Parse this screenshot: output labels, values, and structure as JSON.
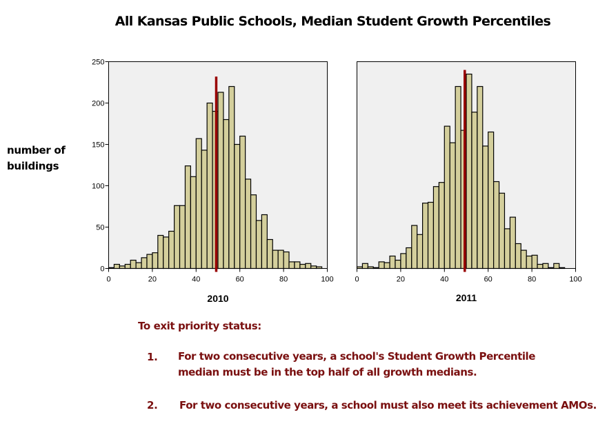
{
  "title": "All Kansas Public Schools, Median Student Growth Percentiles",
  "y_axis_label": [
    "number of",
    "buildings"
  ],
  "colors": {
    "bar_fill": "#d4cf9c",
    "bar_stroke": "#000000",
    "plot_bg": "#f0f0f0",
    "median_line": "#990000",
    "note_text": "#7a1010"
  },
  "chart_data": [
    {
      "type": "bar",
      "title": "2010",
      "xlabel": "2010",
      "ylabel": "number of buildings",
      "bin_width": 2.5,
      "bin_starts": [
        0,
        2.5,
        5,
        7.5,
        10,
        12.5,
        15,
        17.5,
        20,
        22.5,
        25,
        27.5,
        30,
        32.5,
        35,
        37.5,
        40,
        42.5,
        45,
        47.5,
        50,
        52.5,
        55,
        57.5,
        60,
        62.5,
        65,
        67.5,
        70,
        72.5,
        75,
        77.5,
        80,
        82.5,
        85,
        87.5,
        90,
        92.5,
        95
      ],
      "values": [
        1,
        5,
        3,
        5,
        10,
        7,
        13,
        17,
        19,
        40,
        38,
        45,
        76,
        76,
        124,
        111,
        157,
        143,
        200,
        190,
        213,
        180,
        220,
        150,
        160,
        108,
        89,
        58,
        65,
        35,
        22,
        22,
        20,
        8,
        8,
        5,
        6,
        3,
        2
      ],
      "median": 49.2,
      "x_ticks": [
        "0",
        "20",
        "40",
        "60",
        "80",
        "100"
      ],
      "y_ticks": [
        "0",
        "50",
        "100",
        "150",
        "200",
        "250"
      ],
      "xlim": [
        0,
        100
      ],
      "ylim": [
        0,
        250
      ],
      "grid": false
    },
    {
      "type": "bar",
      "title": "2011",
      "xlabel": "2011",
      "ylabel": "",
      "bin_width": 2.5,
      "bin_starts": [
        0,
        2.5,
        5,
        7.5,
        10,
        12.5,
        15,
        17.5,
        20,
        22.5,
        25,
        27.5,
        30,
        32.5,
        35,
        37.5,
        40,
        42.5,
        45,
        47.5,
        50,
        52.5,
        55,
        57.5,
        60,
        62.5,
        65,
        67.5,
        70,
        72.5,
        75,
        77.5,
        80,
        82.5,
        85,
        87.5,
        90,
        92.5
      ],
      "values": [
        2,
        6,
        2,
        1,
        8,
        7,
        15,
        10,
        18,
        25,
        52,
        41,
        79,
        80,
        99,
        104,
        172,
        152,
        220,
        167,
        235,
        189,
        220,
        148,
        165,
        105,
        91,
        48,
        62,
        30,
        22,
        15,
        16,
        5,
        6,
        1,
        6,
        1
      ],
      "median": 49.3,
      "x_ticks": [
        "0",
        "20",
        "40",
        "60",
        "80",
        "100"
      ],
      "y_ticks": [],
      "xlim": [
        0,
        100
      ],
      "ylim": [
        0,
        250
      ],
      "grid": false
    }
  ],
  "notes": {
    "heading": "To exit priority status:",
    "items": [
      {
        "number": "1.",
        "lines": [
          "For two consecutive years, a school's Student Growth Percentile",
          "median must be in the top half of all growth medians."
        ]
      },
      {
        "number": "2.",
        "lines": [
          "For two consecutive years, a school must also meet its achievement AMOs."
        ]
      }
    ]
  }
}
